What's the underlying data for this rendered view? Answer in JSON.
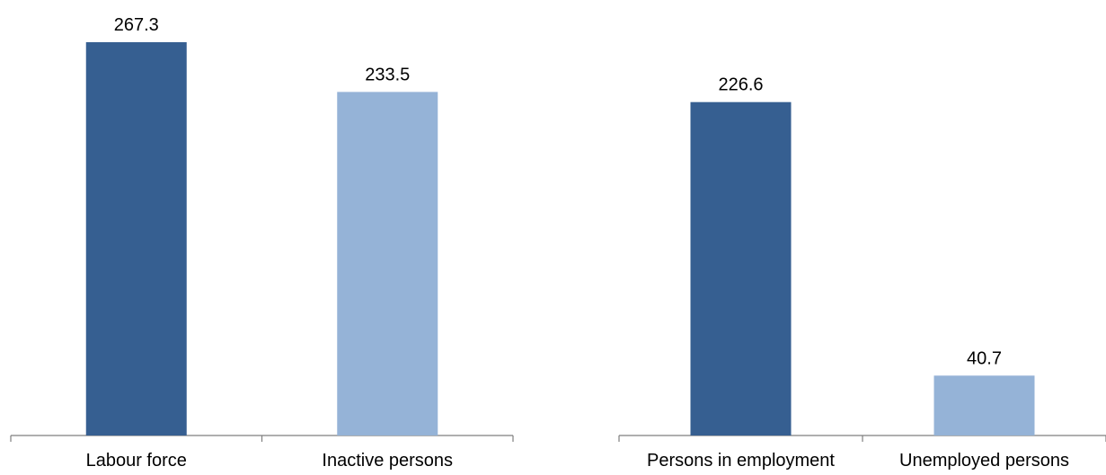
{
  "colors": {
    "primary_bar": "#365F91",
    "secondary_bar": "#95B3D7",
    "axis": "#7F7F7F",
    "text": "#000000"
  },
  "chart_data": [
    {
      "type": "bar",
      "categories": [
        "Labour force",
        "Inactive persons"
      ],
      "values": [
        267.3,
        233.5
      ],
      "data_labels": [
        "267.3",
        "233.5"
      ],
      "bar_colors": [
        "#365F91",
        "#95B3D7"
      ],
      "title": "",
      "xlabel": "",
      "ylabel": "",
      "ylim": [
        0,
        267.3
      ],
      "grid": false
    },
    {
      "type": "bar",
      "categories": [
        "Persons in employment",
        "Unemployed persons"
      ],
      "values": [
        226.6,
        40.7
      ],
      "data_labels": [
        "226.6",
        "40.7"
      ],
      "bar_colors": [
        "#365F91",
        "#95B3D7"
      ],
      "title": "",
      "xlabel": "",
      "ylabel": "",
      "ylim": [
        0,
        267.3
      ],
      "grid": false
    }
  ]
}
